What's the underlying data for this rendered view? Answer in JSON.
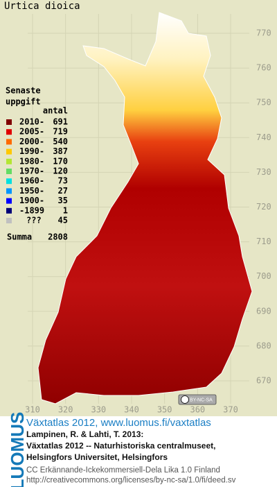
{
  "title": "Urtica dioica",
  "legend": {
    "heading": [
      "Senaste",
      "uppgift"
    ],
    "count_header": "antal",
    "rows": [
      {
        "label": "2010-",
        "count": 691,
        "color": "#800000"
      },
      {
        "label": "2005-",
        "count": 719,
        "color": "#e00000"
      },
      {
        "label": "2000-",
        "count": 540,
        "color": "#ff6a00"
      },
      {
        "label": "1990-",
        "count": 387,
        "color": "#ffc800"
      },
      {
        "label": "1980-",
        "count": 170,
        "color": "#b4e632"
      },
      {
        "label": "1970-",
        "count": 120,
        "color": "#64dc64"
      },
      {
        "label": "1960-",
        "count": 73,
        "color": "#00e0e0"
      },
      {
        "label": "1950-",
        "count": 27,
        "color": "#0096ff"
      },
      {
        "label": "1900-",
        "count": 35,
        "color": "#0000ff"
      },
      {
        "label": "-1899",
        "count": 1,
        "color": "#000078"
      },
      {
        "label": "???",
        "count": 45,
        "color": "#c0c0c0"
      }
    ],
    "total": {
      "label": "Summa",
      "count": 2808
    }
  },
  "grid": {
    "y_labels": [
      770,
      760,
      750,
      740,
      730,
      720,
      710,
      700,
      690,
      680,
      670
    ],
    "x_labels": [
      310,
      320,
      330,
      340,
      350,
      360,
      370
    ]
  },
  "license_badge": "BY-NC-SA",
  "side_logo": "LUOMUS",
  "footer": {
    "link": "Växtatlas 2012, www.luomus.fi/vaxtatlas",
    "citation": [
      "Lampinen, R. & Lahti, T. 2013:",
      "Växtatlas 2012 -- Naturhistoriska centralmuseet,",
      "Helsingfors Universitet, Helsingfors"
    ],
    "license": [
      "CC Erkännande-Ickekommersiell-Dela Lika 1.0 Finland",
      "http://creativecommons.org/licenses/by-nc-sa/1.0/fi/deed.sv"
    ]
  }
}
